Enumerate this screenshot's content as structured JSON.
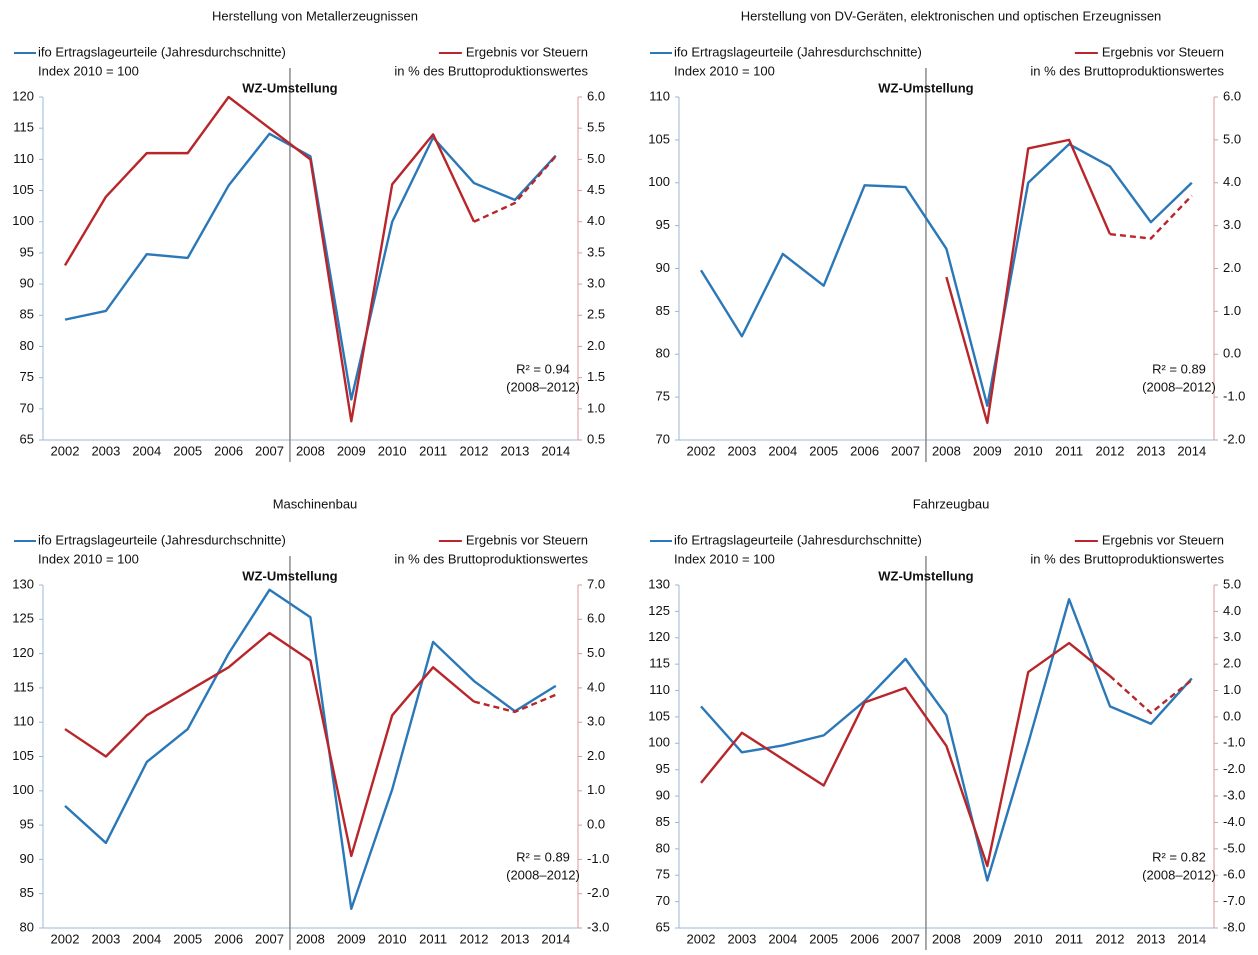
{
  "chart_data": [
    {
      "type": "line",
      "title": "Herstellung von Metallerzeugnissen",
      "categories": [
        "2002",
        "2003",
        "2004",
        "2005",
        "2006",
        "2007",
        "2008",
        "2009",
        "2010",
        "2011",
        "2012",
        "2013",
        "2014"
      ],
      "series": [
        {
          "name": "ifo Ertragslageurteile (Jahresdurchschnitte)",
          "unit": "Index 2010 = 100",
          "color": "#2a78b8",
          "axis": "y",
          "values": [
            84.3,
            85.7,
            94.8,
            94.2,
            105.8,
            114.1,
            110.5,
            71.5,
            100,
            113.5,
            106.2,
            103.5,
            110.6
          ]
        },
        {
          "name": "Ergebnis vor Steuern",
          "unit": "in % des Bruttoproduktionswertes",
          "color": "#b8262b",
          "axis": "y2",
          "dashed_from": "2012",
          "values": [
            3.3,
            4.4,
            5.1,
            5.1,
            6.0,
            5.5,
            5.0,
            0.8,
            4.6,
            5.4,
            4.0,
            4.3,
            5.05
          ]
        }
      ],
      "ylim": [
        65,
        120
      ],
      "yticks": [
        65,
        70,
        75,
        80,
        85,
        90,
        95,
        100,
        105,
        110,
        115,
        120
      ],
      "y2lim": [
        0.5,
        6.0
      ],
      "y2ticks": [
        {
          "value": 0.5,
          "label": "0.5"
        },
        {
          "value": 1,
          "label": "1.0"
        },
        {
          "value": 1.5,
          "label": "1.5"
        },
        {
          "value": 2,
          "label": "2.0"
        },
        {
          "value": 2.5,
          "label": "2.5"
        },
        {
          "value": 3,
          "label": "3.0"
        },
        {
          "value": 3.5,
          "label": "3.5"
        },
        {
          "value": 4,
          "label": "4.0"
        },
        {
          "value": 4.5,
          "label": "4.5"
        },
        {
          "value": 5,
          "label": "5.0"
        },
        {
          "value": 5.5,
          "label": "5.5"
        },
        {
          "value": 6,
          "label": "6.0"
        }
      ],
      "marker_label": "WZ-Umstellung",
      "r2_label": "R² = 0.94",
      "r2_period": "(2008–2012)"
    },
    {
      "type": "line",
      "title": "Herstellung von DV-Geräten, elektronischen und optischen Erzeugnissen",
      "categories": [
        "2002",
        "2003",
        "2004",
        "2005",
        "2006",
        "2007",
        "2008",
        "2009",
        "2010",
        "2011",
        "2012",
        "2013",
        "2014"
      ],
      "series": [
        {
          "name": "ifo Ertragslageurteile (Jahresdurchschnitte)",
          "unit": "Index 2010 = 100",
          "color": "#2a78b8",
          "axis": "y",
          "values": [
            89.8,
            82.1,
            91.7,
            88.0,
            99.7,
            99.5,
            92.3,
            74.0,
            100,
            104.5,
            101.9,
            95.4,
            100
          ]
        },
        {
          "name": "Ergebnis vor Steuern",
          "unit": "in % des Bruttoproduktionswertes",
          "color": "#b8262b",
          "axis": "y2",
          "dashed_from": "2012",
          "values": [
            null,
            null,
            null,
            null,
            null,
            null,
            1.8,
            -1.6,
            4.8,
            5.0,
            2.8,
            2.7,
            3.7
          ]
        }
      ],
      "ylim": [
        70,
        110
      ],
      "yticks": [
        70,
        75,
        80,
        85,
        90,
        95,
        100,
        105,
        110
      ],
      "y2lim": [
        -2,
        6
      ],
      "y2ticks": [
        {
          "value": -2,
          "label": "-2.0"
        },
        {
          "value": -1,
          "label": "-1.0"
        },
        {
          "value": 0,
          "label": "0.0"
        },
        {
          "value": 1,
          "label": "1.0"
        },
        {
          "value": 2,
          "label": "2.0"
        },
        {
          "value": 3,
          "label": "3.0"
        },
        {
          "value": 4,
          "label": "4.0"
        },
        {
          "value": 5,
          "label": "5.0"
        },
        {
          "value": 6,
          "label": "6.0"
        }
      ],
      "marker_label": "WZ-Umstellung",
      "r2_label": "R² = 0.89",
      "r2_period": "(2008–2012)"
    },
    {
      "type": "line",
      "title": "Maschinenbau",
      "categories": [
        "2002",
        "2003",
        "2004",
        "2005",
        "2006",
        "2007",
        "2008",
        "2009",
        "2010",
        "2011",
        "2012",
        "2013",
        "2014"
      ],
      "series": [
        {
          "name": "ifo Ertragslageurteile (Jahresdurchschnitte)",
          "unit": "Index 2010 = 100",
          "color": "#2a78b8",
          "axis": "y",
          "values": [
            97.8,
            92.4,
            104.2,
            109.0,
            120.0,
            129.3,
            125.3,
            82.8,
            100.2,
            121.7,
            116.0,
            111.6,
            115.3
          ]
        },
        {
          "name": "Ergebnis vor Steuern",
          "unit": "in % des Bruttoproduktionswertes",
          "color": "#b8262b",
          "axis": "y2",
          "dashed_from": "2012",
          "values": [
            2.8,
            2.0,
            3.2,
            3.9,
            4.6,
            5.6,
            4.8,
            -0.9,
            3.2,
            4.6,
            3.6,
            3.3,
            3.8
          ]
        }
      ],
      "ylim": [
        80,
        130
      ],
      "yticks": [
        80,
        85,
        90,
        95,
        100,
        105,
        110,
        115,
        120,
        125,
        130
      ],
      "y2lim": [
        -3,
        7
      ],
      "y2ticks": [
        {
          "value": -3,
          "label": "-3.0"
        },
        {
          "value": -2,
          "label": "-2.0"
        },
        {
          "value": -1,
          "label": "-1.0"
        },
        {
          "value": 0,
          "label": "0.0"
        },
        {
          "value": 1,
          "label": "1.0"
        },
        {
          "value": 2,
          "label": "2.0"
        },
        {
          "value": 3,
          "label": "3.0"
        },
        {
          "value": 4,
          "label": "4.0"
        },
        {
          "value": 5,
          "label": "5.0"
        },
        {
          "value": 6,
          "label": "6.0"
        },
        {
          "value": 7,
          "label": "7.0"
        }
      ],
      "marker_label": "WZ-Umstellung",
      "r2_label": "R² = 0.89",
      "r2_period": "(2008–2012)"
    },
    {
      "type": "line",
      "title": "Fahrzeugbau",
      "categories": [
        "2002",
        "2003",
        "2004",
        "2005",
        "2006",
        "2007",
        "2008",
        "2009",
        "2010",
        "2011",
        "2012",
        "2013",
        "2014"
      ],
      "series": [
        {
          "name": "ifo Ertragslageurteile (Jahresdurchschnitte)",
          "unit": "Index 2010 = 100",
          "color": "#2a78b8",
          "axis": "y",
          "values": [
            107,
            98.3,
            99.6,
            101.5,
            108,
            116,
            105.3,
            74,
            100,
            127.3,
            107,
            103.7,
            112.3
          ]
        },
        {
          "name": "Ergebnis vor Steuern",
          "unit": "in % des Bruttoproduktionswertes",
          "color": "#b8262b",
          "axis": "y2",
          "dashed_from": "2012",
          "values": [
            -2.5,
            -0.6,
            -1.6,
            -2.6,
            0.55,
            1.1,
            -1.1,
            -5.65,
            1.7,
            2.8,
            1.55,
            0.15,
            1.4
          ]
        }
      ],
      "ylim": [
        65,
        130
      ],
      "yticks": [
        65,
        70,
        75,
        80,
        85,
        90,
        95,
        100,
        105,
        110,
        115,
        120,
        125,
        130
      ],
      "y2lim": [
        -8,
        5
      ],
      "y2ticks": [
        {
          "value": -8,
          "label": "-8.0"
        },
        {
          "value": -7,
          "label": "-7.0"
        },
        {
          "value": -6,
          "label": "-6.0"
        },
        {
          "value": -5,
          "label": "-5.0"
        },
        {
          "value": -4,
          "label": "-4.0"
        },
        {
          "value": -3,
          "label": "-3.0"
        },
        {
          "value": -2,
          "label": "-2.0"
        },
        {
          "value": -1,
          "label": "-1.0"
        },
        {
          "value": 0,
          "label": "0.0"
        },
        {
          "value": 1,
          "label": "1.0"
        },
        {
          "value": 2,
          "label": "2.0"
        },
        {
          "value": 3,
          "label": "3.0"
        },
        {
          "value": 4,
          "label": "4.0"
        },
        {
          "value": 5,
          "label": "5.0"
        }
      ],
      "marker_label": "WZ-Umstellung",
      "r2_label": "R² = 0.82",
      "r2_period": "(2008–2012)"
    }
  ]
}
